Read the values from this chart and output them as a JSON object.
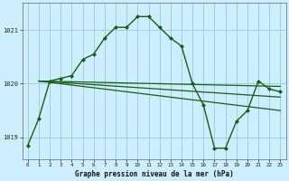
{
  "xlabel": "Graphe pression niveau de la mer (hPa)",
  "background_color": "#cceeff",
  "grid_color": "#99cccc",
  "line_color": "#1a5c1a",
  "x_ticks": [
    0,
    1,
    2,
    3,
    4,
    5,
    6,
    7,
    8,
    9,
    10,
    11,
    12,
    13,
    14,
    15,
    16,
    17,
    18,
    19,
    20,
    21,
    22,
    23
  ],
  "ylim": [
    1018.6,
    1021.5
  ],
  "yticks": [
    1019,
    1020,
    1021
  ],
  "figsize": [
    3.2,
    2.0
  ],
  "dpi": 100,
  "series": [
    {
      "x": [
        0,
        1,
        2,
        3,
        4,
        5,
        6,
        7,
        8,
        9,
        10,
        11,
        12,
        13,
        14,
        15,
        16,
        17,
        18,
        19,
        20,
        21,
        22,
        23
      ],
      "y": [
        1018.85,
        1019.35,
        1020.05,
        1020.1,
        1020.15,
        1020.45,
        1020.55,
        1020.85,
        1021.05,
        1021.05,
        1021.25,
        1021.25,
        1021.05,
        1020.85,
        1020.7,
        1020.0,
        1019.6,
        1018.8,
        1018.8,
        1019.3,
        1019.5,
        1020.05,
        1019.9,
        1019.85
      ],
      "marker": "D",
      "markersize": 2.0,
      "linewidth": 1.0
    },
    {
      "x": [
        1,
        23
      ],
      "y": [
        1020.05,
        1019.95
      ],
      "marker": null,
      "linewidth": 0.9
    },
    {
      "x": [
        1,
        23
      ],
      "y": [
        1020.05,
        1019.75
      ],
      "marker": null,
      "linewidth": 0.9
    },
    {
      "x": [
        1,
        23
      ],
      "y": [
        1020.05,
        1019.5
      ],
      "marker": null,
      "linewidth": 0.9
    }
  ]
}
